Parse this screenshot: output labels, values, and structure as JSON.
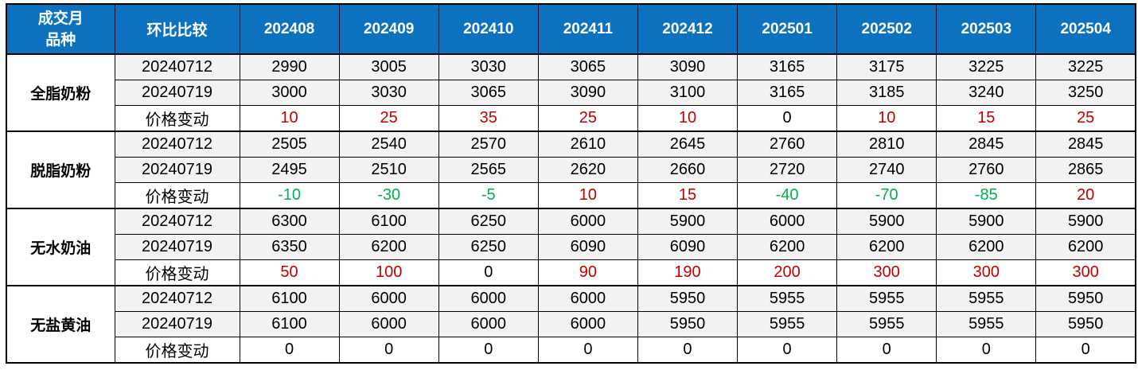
{
  "table": {
    "corner": {
      "line1": "成交月",
      "line2": "品种"
    },
    "compare_label": "环比比较",
    "months": [
      "202408",
      "202409",
      "202410",
      "202411",
      "202412",
      "202501",
      "202502",
      "202503",
      "202504"
    ],
    "colors": {
      "header_bg": "#0C72C0",
      "header_text": "#FFFFFF",
      "date_row_bg": "#F2F2F2",
      "change_row_bg": "#FFFFFF",
      "positive_change": "#C00000",
      "negative_change": "#00B050",
      "zero_change": "#000000",
      "border": "#000000"
    },
    "groups": [
      {
        "name": "全脂奶粉",
        "rows": [
          {
            "label": "20240712",
            "type": "date",
            "values": [
              2990,
              3005,
              3030,
              3065,
              3090,
              3165,
              3175,
              3225,
              3225
            ]
          },
          {
            "label": "20240719",
            "type": "date",
            "values": [
              3000,
              3030,
              3065,
              3090,
              3100,
              3165,
              3185,
              3240,
              3250
            ]
          },
          {
            "label": "价格变动",
            "type": "change",
            "values": [
              10,
              25,
              35,
              25,
              10,
              0,
              10,
              15,
              25
            ]
          }
        ]
      },
      {
        "name": "脱脂奶粉",
        "rows": [
          {
            "label": "20240712",
            "type": "date",
            "values": [
              2505,
              2540,
              2570,
              2610,
              2645,
              2760,
              2810,
              2845,
              2845
            ]
          },
          {
            "label": "20240719",
            "type": "date",
            "values": [
              2495,
              2510,
              2565,
              2620,
              2660,
              2720,
              2740,
              2760,
              2865
            ]
          },
          {
            "label": "价格变动",
            "type": "change",
            "values": [
              -10,
              -30,
              -5,
              10,
              15,
              -40,
              -70,
              -85,
              20
            ]
          }
        ]
      },
      {
        "name": "无水奶油",
        "rows": [
          {
            "label": "20240712",
            "type": "date",
            "values": [
              6300,
              6100,
              6250,
              6000,
              5900,
              6000,
              5900,
              5900,
              5900
            ]
          },
          {
            "label": "20240719",
            "type": "date",
            "values": [
              6350,
              6200,
              6250,
              6090,
              6090,
              6200,
              6200,
              6200,
              6200
            ]
          },
          {
            "label": "价格变动",
            "type": "change",
            "values": [
              50,
              100,
              0,
              90,
              190,
              200,
              300,
              300,
              300
            ]
          }
        ]
      },
      {
        "name": "无盐黄油",
        "rows": [
          {
            "label": "20240712",
            "type": "date",
            "values": [
              6100,
              6000,
              6000,
              6000,
              5950,
              5955,
              5955,
              5955,
              5950
            ]
          },
          {
            "label": "20240719",
            "type": "date",
            "values": [
              6100,
              6000,
              6000,
              6000,
              5950,
              5955,
              5955,
              5955,
              5950
            ]
          },
          {
            "label": "价格变动",
            "type": "change",
            "values": [
              0,
              0,
              0,
              0,
              0,
              0,
              0,
              0,
              0
            ]
          }
        ]
      }
    ]
  }
}
